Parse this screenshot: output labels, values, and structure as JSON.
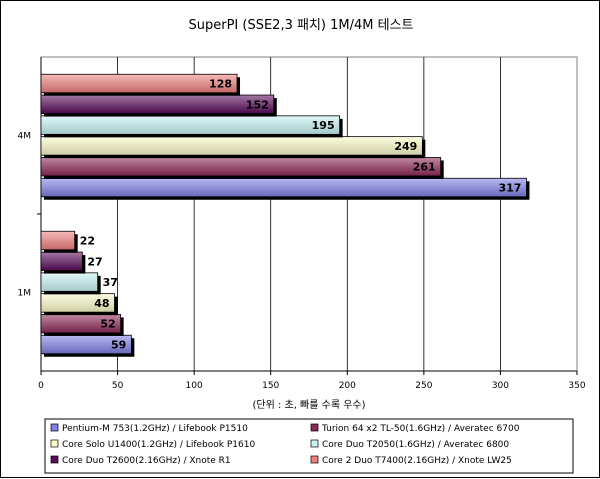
{
  "chart_data": {
    "type": "bar",
    "orientation": "horizontal",
    "title": "SuperPI (SSE2,3 패치) 1M/4M 테스트",
    "xlabel": "(단위 : 초, 빠를 수록 우수)",
    "xlim": [
      0,
      350
    ],
    "xticks": [
      0,
      50,
      100,
      150,
      200,
      250,
      300,
      350
    ],
    "grid": true,
    "legend_position": "bottom",
    "categories": [
      "4M",
      "1M"
    ],
    "series": [
      {
        "name": "Pentium-M 753(1.2GHz) / Lifebook P1510",
        "color": "#8080e6",
        "values": [
          317,
          59
        ]
      },
      {
        "name": "Turion 64 x2 TL-50(1.6GHz) / Averatec 6700",
        "color": "#8e2858",
        "values": [
          261,
          52
        ]
      },
      {
        "name": "Core Solo U1400(1.2GHz) / Lifebook P1610",
        "color": "#fbfbc8",
        "values": [
          249,
          48
        ]
      },
      {
        "name": "Core Duo T2050(1.6GHz) / Averatec 6800",
        "color": "#c8f4f4",
        "values": [
          195,
          37
        ]
      },
      {
        "name": "Core Duo T2600(2.16GHz) / Xnote R1",
        "color": "#5a0a5a",
        "values": [
          152,
          27
        ]
      },
      {
        "name": "Core 2 Duo T7400(2.16GHz) / Xnote LW25",
        "color": "#f08080",
        "values": [
          128,
          22
        ]
      }
    ]
  }
}
